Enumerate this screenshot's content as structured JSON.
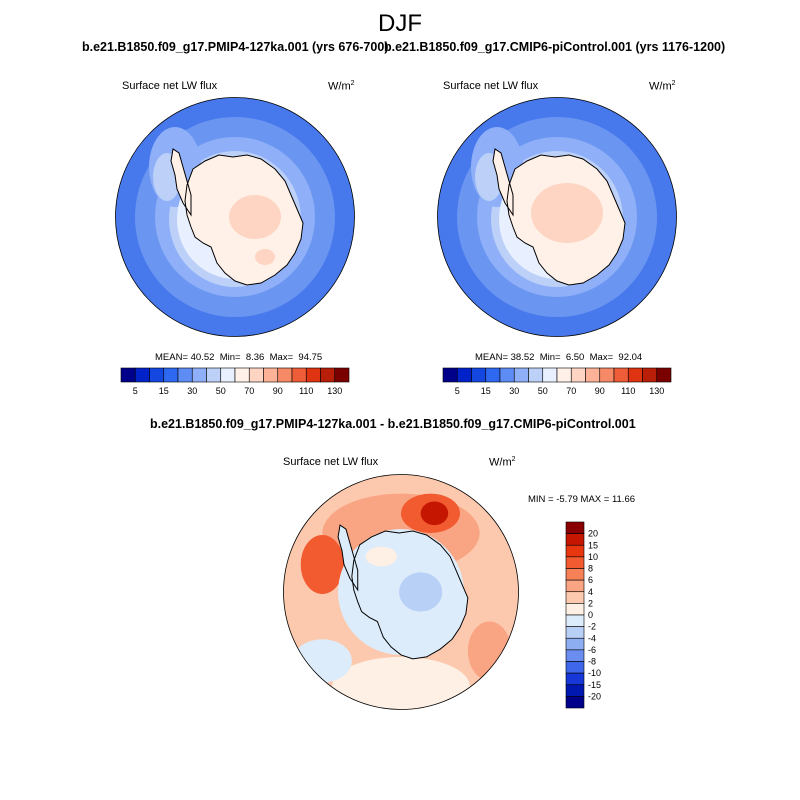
{
  "season": "DJF",
  "panels": [
    {
      "title": "b.e21.B1850.f09_g17.PMIP4-127ka.001 (yrs 676-700)",
      "variable": "Surface net LW flux",
      "units": "W/m",
      "units_exp": "2",
      "mean_label": "MEAN=",
      "mean": "40.52",
      "min_label": "Min=",
      "min": "8.36",
      "max_label": "Max=",
      "max": "94.75"
    },
    {
      "title": "b.e21.B1850.f09_g17.CMIP6-piControl.001 (yrs 1176-1200)",
      "variable": "Surface net LW flux",
      "units": "W/m",
      "units_exp": "2",
      "mean_label": "MEAN=",
      "mean": "38.52",
      "min_label": "Min=",
      "min": "6.50",
      "max_label": "Max=",
      "max": "92.04"
    }
  ],
  "diff_panel": {
    "title": "b.e21.B1850.f09_g17.PMIP4-127ka.001 - b.e21.B1850.f09_g17.CMIP6-piControl.001",
    "variable": "Surface net LW flux",
    "units": "W/m",
    "units_exp": "2",
    "stats": "MIN = -5.79 MAX = 11.66"
  },
  "colorbar_levels": [
    "5",
    "15",
    "30",
    "50",
    "70",
    "90",
    "110",
    "130"
  ],
  "colorbar_colors": [
    "#00008b",
    "#0022c8",
    "#1447e0",
    "#2f68f0",
    "#5e8cf5",
    "#8fb0f8",
    "#bcd0f8",
    "#e8efff",
    "#fff1e8",
    "#fdd5c2",
    "#fbb296",
    "#f78a66",
    "#ee5c38",
    "#de3412",
    "#b81e08",
    "#7a0000"
  ],
  "diff_colorbar_levels": [
    "20",
    "15",
    "10",
    "8",
    "6",
    "4",
    "2",
    "0",
    "-2",
    "-4",
    "-6",
    "-8",
    "-10",
    "-15",
    "-20"
  ],
  "diff_colorbar_colors": [
    "#8a0000",
    "#c41600",
    "#e8360e",
    "#f25a30",
    "#f78157",
    "#f9a482",
    "#fcc9ae",
    "#fff0e5",
    "#ddecfb",
    "#b9d0f6",
    "#8eaef2",
    "#6a8def",
    "#3f67ec",
    "#1638d8",
    "#0018b0",
    "#00008a"
  ],
  "map_colors": {
    "ocean_deep": "#4778ec",
    "ocean_mid": "#6a95f1",
    "ocean_light": "#8fb0f8",
    "coast": "#bcd0f8",
    "ice_edge": "#e8efff",
    "land": "#fff1e8",
    "land_warm": "#fdd5c2",
    "diff_pos": "#fcc9ae",
    "diff_pos2": "#f9a482",
    "diff_pos3": "#f25a30",
    "diff_pos4": "#c41600",
    "diff_neg": "#ddecfb",
    "diff_neg2": "#b9d0f6",
    "diff_zero": "#fff0e5"
  }
}
